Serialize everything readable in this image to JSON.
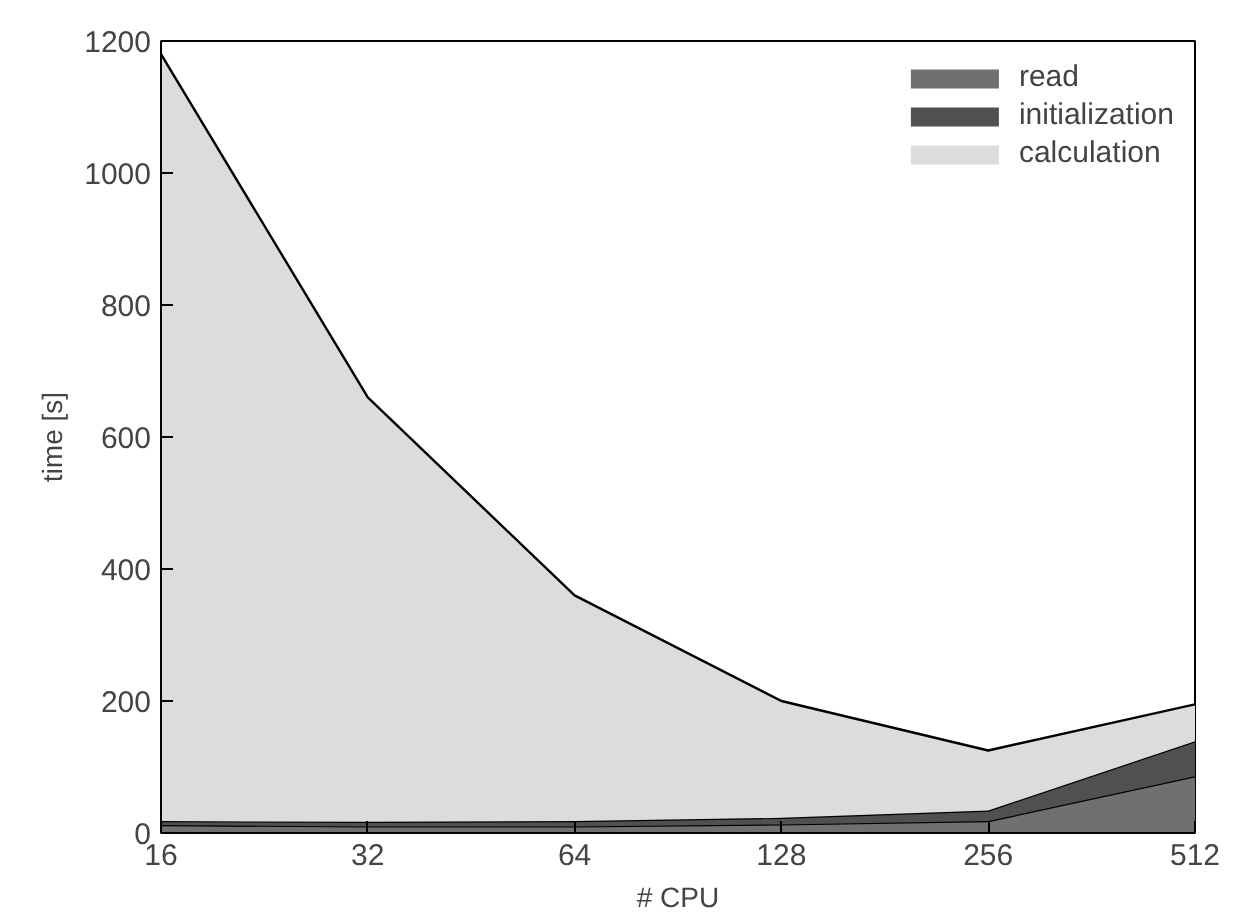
{
  "chart_data": {
    "type": "area",
    "stacked": true,
    "xlabel": "# CPU",
    "ylabel": "time [s]",
    "x": [
      16,
      32,
      64,
      128,
      256,
      512
    ],
    "log": "x",
    "xlim": [
      16,
      512
    ],
    "xticks": [
      16,
      32,
      64,
      128,
      256,
      512
    ],
    "ylim": [
      0,
      1200
    ],
    "yticks": [
      0,
      200,
      400,
      600,
      800,
      1000,
      1200
    ],
    "legend": "top right",
    "grid": false,
    "series": [
      {
        "name": "read",
        "color": "#707070",
        "values": [
          12,
          10,
          10,
          13,
          18,
          86
        ]
      },
      {
        "name": "initialization",
        "color": "#505050",
        "values": [
          6,
          7,
          8,
          10,
          16,
          53
        ]
      },
      {
        "name": "calculation",
        "color": "#dcdcdc",
        "values": [
          1162,
          643,
          342,
          177,
          91,
          56
        ]
      }
    ]
  }
}
